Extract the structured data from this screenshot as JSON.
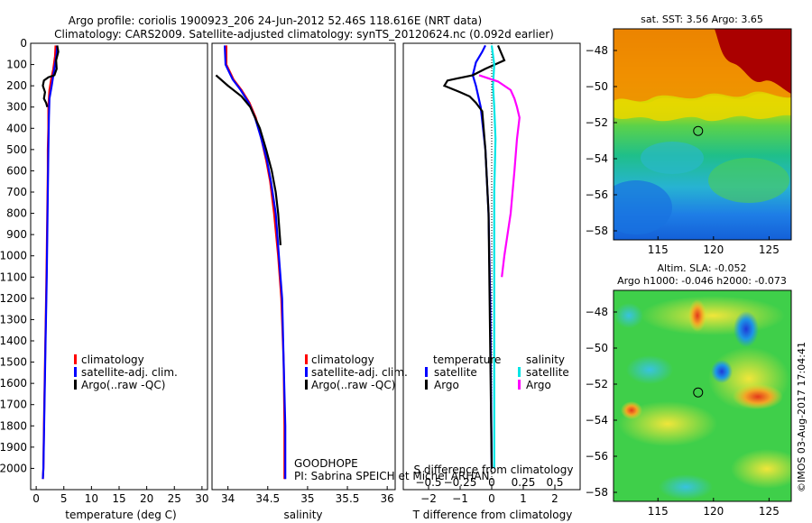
{
  "figure": {
    "title_line1": "Argo profile: coriolis 1900923_206 24-Jun-2012 52.46S 118.616E (NRT data)",
    "title_line2": "Climatology: CARS2009. Satellite-adjusted climatology: synTS_20120624.nc (0.092d earlier)",
    "credit": "©IMOS 03-Aug-2017 17:04:41",
    "colors": {
      "climatology": "#ff0000",
      "satellite": "#0000ff",
      "argo": "#000000",
      "salinity_satellite": "#00e5e5",
      "salinity_argo": "#ff00ff"
    }
  },
  "chart_data": [
    {
      "id": "temperature",
      "type": "line",
      "xlabel": "temperature (deg C)",
      "ylabel": "",
      "xlim": [
        -1,
        31
      ],
      "ylim": [
        2100,
        0
      ],
      "y_reversed": true,
      "xticks": [
        0,
        5,
        10,
        15,
        20,
        25,
        30
      ],
      "yticks": [
        0,
        100,
        200,
        300,
        400,
        500,
        600,
        700,
        800,
        900,
        1000,
        1100,
        1200,
        1300,
        1400,
        1500,
        1600,
        1700,
        1800,
        1900,
        2000
      ],
      "legend": [
        "climatology",
        "satellite-adj. clim.",
        "Argo(..raw -QC)"
      ],
      "legend_position": "center",
      "series": [
        {
          "name": "climatology",
          "color": "#ff0000",
          "points": [
            [
              3.5,
              10
            ],
            [
              3.4,
              60
            ],
            [
              3.1,
              120
            ],
            [
              2.7,
              170
            ],
            [
              2.4,
              220
            ],
            [
              2.2,
              300
            ],
            [
              2.2,
              400
            ],
            [
              2.1,
              500
            ],
            [
              2.1,
              600
            ],
            [
              2.0,
              800
            ],
            [
              1.9,
              1000
            ],
            [
              1.8,
              1200
            ],
            [
              1.6,
              1500
            ],
            [
              1.4,
              1800
            ],
            [
              1.3,
              2000
            ],
            [
              1.2,
              2050
            ]
          ]
        },
        {
          "name": "satellite-adj. clim.",
          "color": "#0000ff",
          "points": [
            [
              3.8,
              10
            ],
            [
              3.7,
              50
            ],
            [
              3.4,
              100
            ],
            [
              3.1,
              150
            ],
            [
              2.8,
              200
            ],
            [
              2.4,
              260
            ],
            [
              2.3,
              350
            ],
            [
              2.2,
              500
            ],
            [
              2.1,
              700
            ],
            [
              2.0,
              900
            ],
            [
              1.9,
              1100
            ],
            [
              1.7,
              1400
            ],
            [
              1.5,
              1700
            ],
            [
              1.3,
              2000
            ],
            [
              1.2,
              2050
            ]
          ]
        },
        {
          "name": "Argo(..raw -QC)",
          "color": "#000000",
          "points": [
            [
              3.8,
              10
            ],
            [
              4.0,
              40
            ],
            [
              3.6,
              80
            ],
            [
              3.7,
              120
            ],
            [
              3.3,
              150
            ],
            [
              2.2,
              160
            ],
            [
              1.4,
              175
            ],
            [
              1.2,
              200
            ],
            [
              1.6,
              230
            ],
            [
              1.4,
              260
            ],
            [
              1.8,
              280
            ],
            [
              2.0,
              300
            ]
          ]
        }
      ]
    },
    {
      "id": "salinity",
      "type": "line",
      "xlabel": "salinity",
      "ylabel": "",
      "xlim": [
        33.8,
        36.1
      ],
      "ylim": [
        2100,
        0
      ],
      "y_reversed": true,
      "xticks": [
        34,
        34.5,
        35,
        35.5,
        36
      ],
      "xtick_labels": [
        "34",
        "34.5",
        "35",
        "35.5",
        "36"
      ],
      "legend": [
        "climatology",
        "satellite-adj. clim.",
        "Argo(..raw -QC)"
      ],
      "legend_position": "center",
      "annotations": [
        "GOODHOPE",
        "PI: Sabrina SPEICH et Michel ARHAN"
      ],
      "series": [
        {
          "name": "climatology",
          "color": "#ff0000",
          "points": [
            [
              33.98,
              10
            ],
            [
              33.98,
              100
            ],
            [
              34.07,
              170
            ],
            [
              34.17,
              220
            ],
            [
              34.27,
              280
            ],
            [
              34.35,
              350
            ],
            [
              34.42,
              450
            ],
            [
              34.48,
              550
            ],
            [
              34.53,
              650
            ],
            [
              34.58,
              800
            ],
            [
              34.63,
              1000
            ],
            [
              34.67,
              1200
            ],
            [
              34.7,
              1500
            ],
            [
              34.71,
              1800
            ],
            [
              34.71,
              2050
            ]
          ]
        },
        {
          "name": "satellite-adj. clim.",
          "color": "#0000ff",
          "points": [
            [
              33.96,
              10
            ],
            [
              33.97,
              100
            ],
            [
              34.06,
              170
            ],
            [
              34.16,
              220
            ],
            [
              34.26,
              280
            ],
            [
              34.34,
              350
            ],
            [
              34.42,
              450
            ],
            [
              34.49,
              550
            ],
            [
              34.54,
              650
            ],
            [
              34.6,
              800
            ],
            [
              34.64,
              1000
            ],
            [
              34.68,
              1200
            ],
            [
              34.7,
              1500
            ],
            [
              34.72,
              1800
            ],
            [
              34.72,
              2050
            ]
          ]
        },
        {
          "name": "Argo(..raw -QC)",
          "color": "#000000",
          "points": [
            [
              33.85,
              150
            ],
            [
              34.0,
              200
            ],
            [
              34.17,
              250
            ],
            [
              34.28,
              300
            ],
            [
              34.4,
              400
            ],
            [
              34.48,
              500
            ],
            [
              34.55,
              600
            ],
            [
              34.6,
              700
            ],
            [
              34.63,
              800
            ],
            [
              34.66,
              950
            ]
          ]
        }
      ]
    },
    {
      "id": "difference",
      "type": "line",
      "xlabel": "T difference from climatology",
      "top_label": "S difference from climatology",
      "ylabel": "",
      "xlim": [
        -2.8,
        2.8
      ],
      "ylim": [
        2100,
        0
      ],
      "y_reversed": true,
      "xticks": [
        -2,
        -1,
        0,
        1,
        2
      ],
      "xtick_labels": [
        "−2",
        "−1",
        "0",
        "1",
        "2"
      ],
      "top_ticks": [
        -0.5,
        -0.25,
        0,
        0.25,
        0.5
      ],
      "top_tick_labels": [
        "−0.5",
        "−0.25",
        "0",
        "0.25",
        "0.5"
      ],
      "legend_headings": [
        "temperature",
        "salinity"
      ],
      "legend": [
        "satellite",
        "Argo",
        "satellite",
        "Argo"
      ],
      "legend_position": "center",
      "series": [
        {
          "name": "temperature satellite",
          "color": "#0000ff",
          "points": [
            [
              -0.2,
              10
            ],
            [
              -0.3,
              40
            ],
            [
              -0.5,
              90
            ],
            [
              -0.6,
              150
            ],
            [
              -0.5,
              200
            ],
            [
              -0.35,
              300
            ],
            [
              -0.2,
              500
            ],
            [
              -0.1,
              800
            ],
            [
              -0.05,
              1200
            ],
            [
              0,
              2000
            ]
          ]
        },
        {
          "name": "temperature Argo",
          "color": "#000000",
          "points": [
            [
              0.2,
              10
            ],
            [
              0.4,
              80
            ],
            [
              -0.2,
              120
            ],
            [
              -0.6,
              150
            ],
            [
              -1.4,
              175
            ],
            [
              -1.5,
              200
            ],
            [
              -1.0,
              230
            ],
            [
              -0.7,
              250
            ],
            [
              -0.5,
              280
            ],
            [
              -0.3,
              320
            ],
            [
              -0.2,
              500
            ],
            [
              -0.1,
              800
            ],
            [
              0,
              2000
            ]
          ]
        },
        {
          "name": "salinity satellite",
          "color": "#00e5e5",
          "points": [
            [
              0.0,
              10
            ],
            [
              0.02,
              100
            ],
            [
              0.01,
              200
            ],
            [
              0.02,
              300
            ],
            [
              0.03,
              450
            ],
            [
              0.02,
              700
            ],
            [
              0.02,
              1000
            ],
            [
              0.02,
              1400
            ],
            [
              0.02,
              2000
            ]
          ]
        },
        {
          "name": "salinity Argo",
          "color": "#ff00ff",
          "points": [
            [
              -0.1,
              150
            ],
            [
              0.05,
              180
            ],
            [
              0.15,
              220
            ],
            [
              0.18,
              260
            ],
            [
              0.2,
              300
            ],
            [
              0.22,
              350
            ],
            [
              0.2,
              450
            ],
            [
              0.18,
              600
            ],
            [
              0.15,
              800
            ],
            [
              0.1,
              1000
            ],
            [
              0.08,
              1100
            ]
          ]
        }
      ]
    },
    {
      "id": "sst_map",
      "type": "heatmap",
      "title": "sat. SST: 3.56 Argo: 3.65",
      "xlim": [
        111,
        127
      ],
      "ylim": [
        -58.5,
        -46.8
      ],
      "xticks": [
        115,
        120,
        125
      ],
      "yticks": [
        -48,
        -50,
        -52,
        -54,
        -56,
        -58
      ],
      "marker": {
        "lon": 118.616,
        "lat": -52.46
      }
    },
    {
      "id": "sla_map",
      "type": "heatmap",
      "title": "Altim. SLA: -0.052",
      "subtitle": "Argo h1000: -0.046 h2000: -0.073",
      "xlim": [
        111,
        127
      ],
      "ylim": [
        -58.5,
        -46.8
      ],
      "xticks": [
        115,
        120,
        125
      ],
      "yticks": [
        -48,
        -50,
        -52,
        -54,
        -56,
        -58
      ],
      "marker": {
        "lon": 118.616,
        "lat": -52.46
      }
    }
  ]
}
